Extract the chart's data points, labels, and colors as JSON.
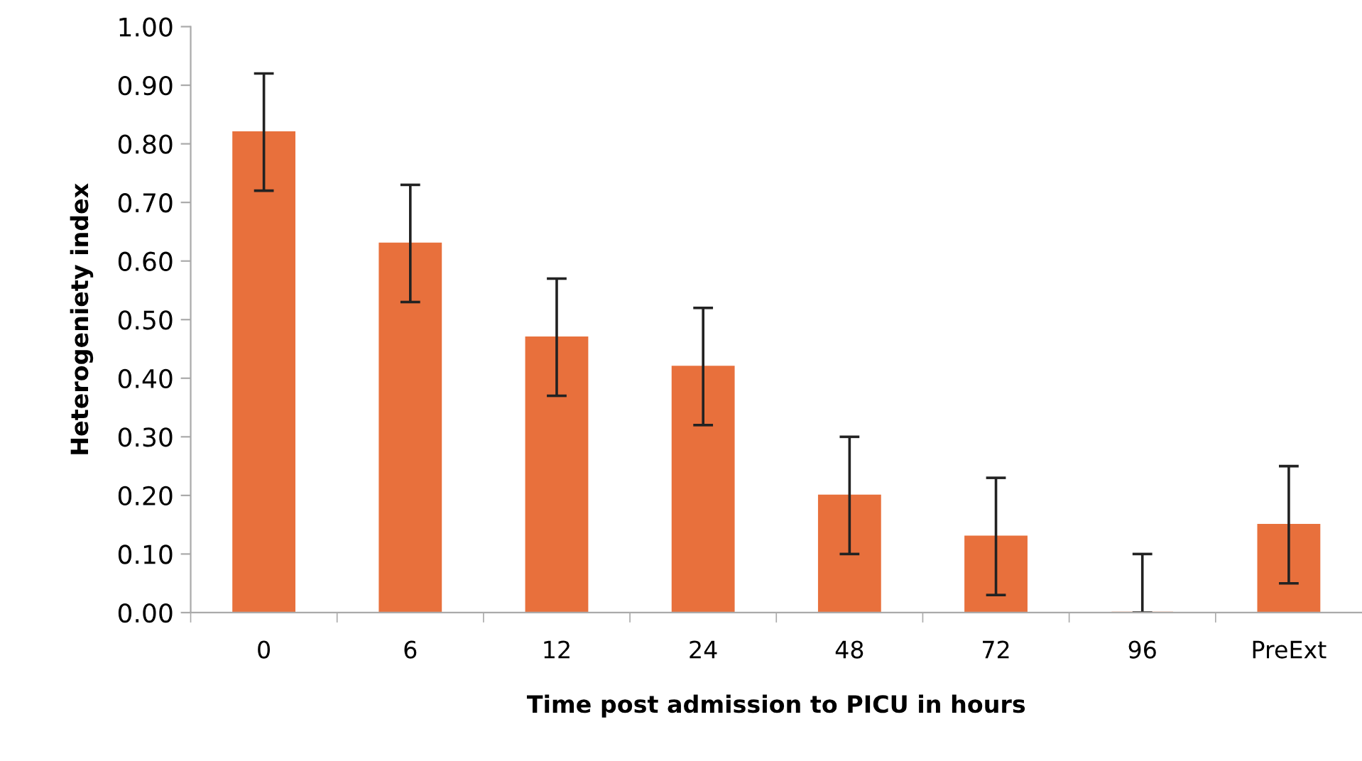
{
  "chart_data": {
    "type": "bar",
    "xlabel": "Time post admission to PICU in hours",
    "ylabel": "Heterogeniety index",
    "categories": [
      "0",
      "6",
      "12",
      "24",
      "48",
      "72",
      "96",
      "PreExt"
    ],
    "values": [
      0.82,
      0.63,
      0.47,
      0.42,
      0.2,
      0.13,
      0,
      0.15
    ],
    "errors": [
      0.1,
      0.1,
      0.1,
      0.1,
      0.1,
      0.1,
      [
        0,
        0.1
      ],
      0.1
    ],
    "color": "#e8703c",
    "ylim": [
      0,
      1
    ],
    "yticks": [
      {
        "value": 0,
        "label": "0.00"
      },
      {
        "value": 0.1,
        "label": "0.10"
      },
      {
        "value": 0.2,
        "label": "0.20"
      },
      {
        "value": 0.3,
        "label": "0.30"
      },
      {
        "value": 0.4,
        "label": "0.40"
      },
      {
        "value": 0.5,
        "label": "0.50"
      },
      {
        "value": 0.6,
        "label": "0.60"
      },
      {
        "value": 0.7,
        "label": "0.70"
      },
      {
        "value": 0.8,
        "label": "0.80"
      },
      {
        "value": 0.9,
        "label": "0.90"
      },
      {
        "value": 1,
        "label": "1.00"
      }
    ],
    "grid": false
  }
}
